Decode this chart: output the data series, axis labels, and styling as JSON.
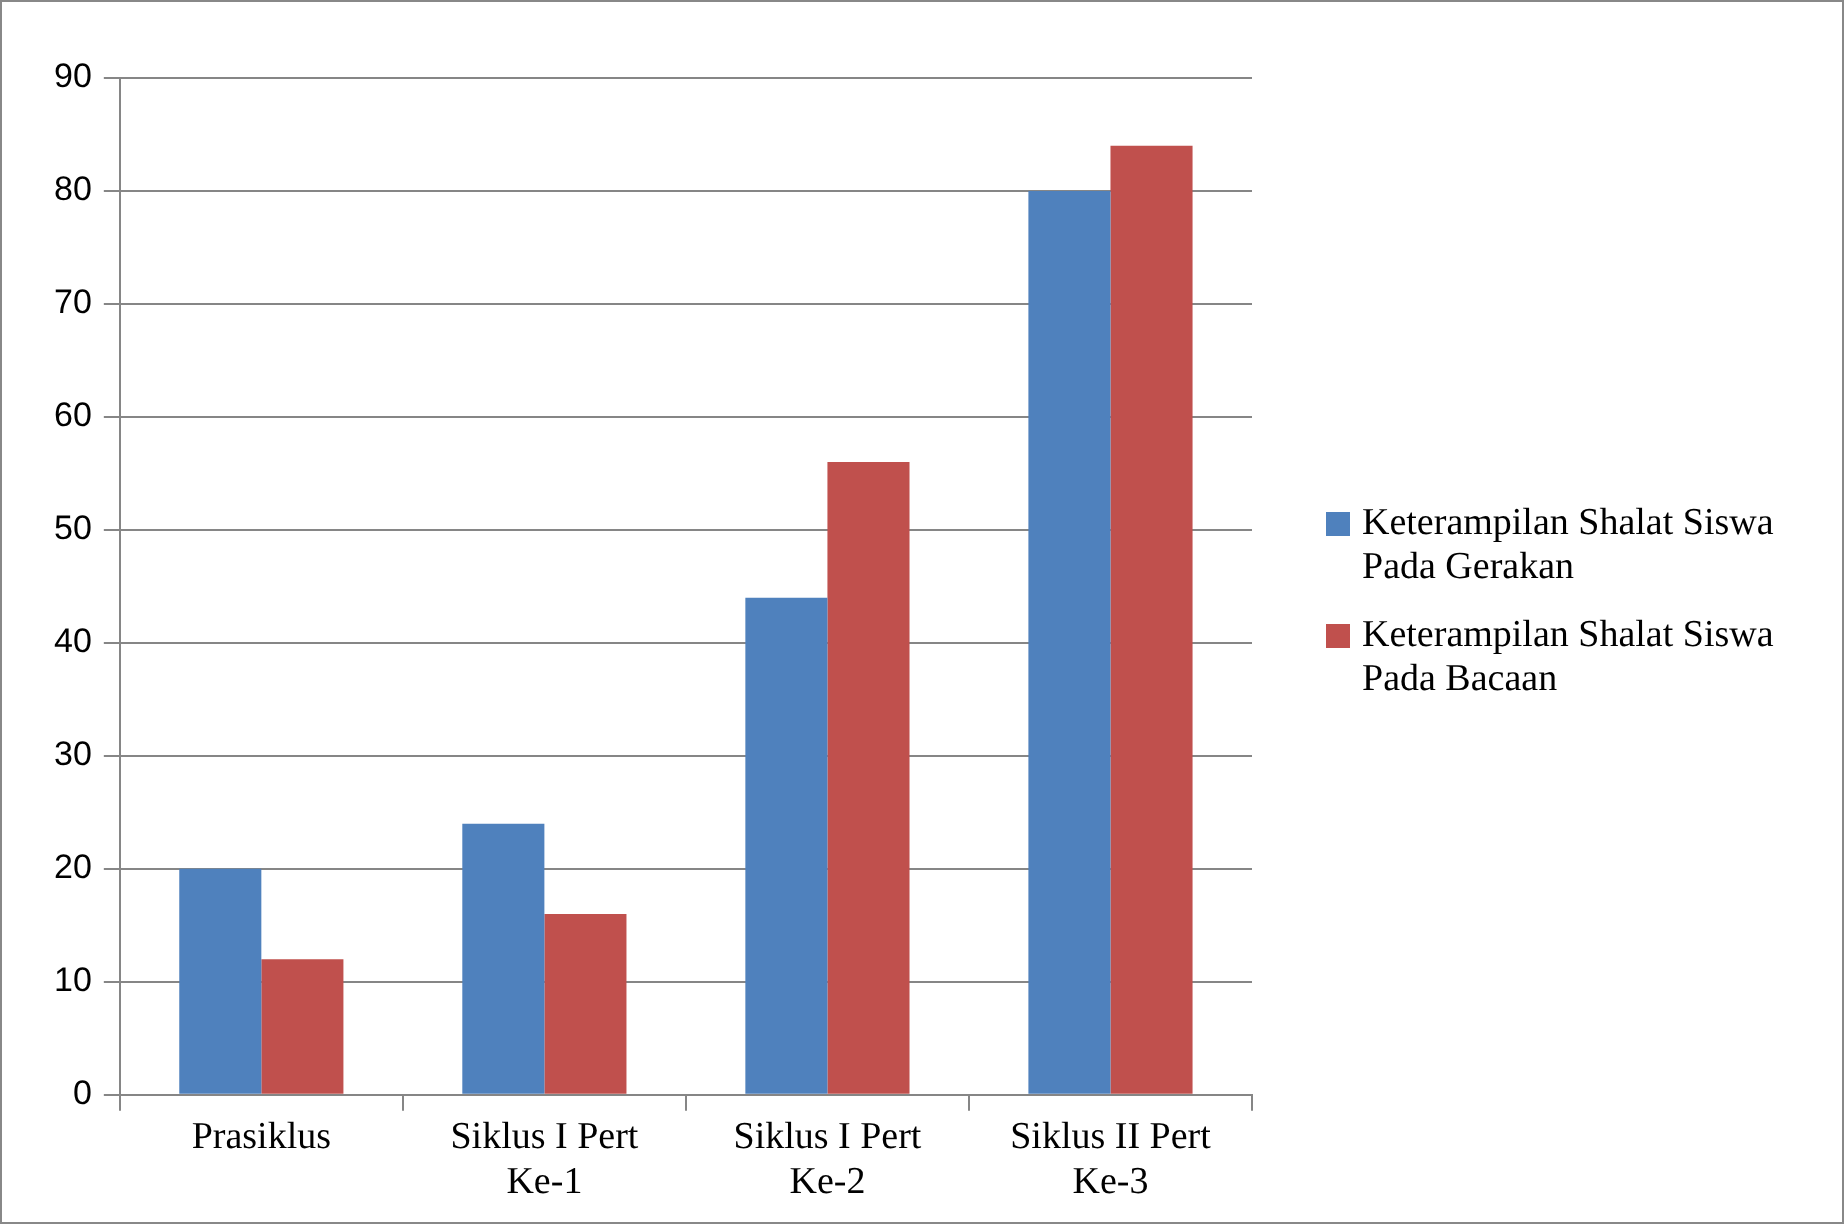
{
  "chart_data": {
    "type": "bar",
    "categories": [
      "Prasiklus",
      "Siklus I Pert Ke-1",
      "Siklus I Pert Ke-2",
      "Siklus II Pert Ke-3"
    ],
    "series": [
      {
        "name": "Keterampilan Shalat Siswa Pada Gerakan",
        "color": "#4f81bd",
        "values": [
          20,
          24,
          44,
          80
        ]
      },
      {
        "name": "Keterampilan Shalat Siswa Pada Bacaan",
        "color": "#c0504d",
        "values": [
          12,
          16,
          56,
          84
        ]
      }
    ],
    "ylim": [
      0,
      90
    ],
    "yticks": [
      0,
      10,
      20,
      30,
      40,
      50,
      60,
      70,
      80,
      90
    ],
    "grid": "y",
    "legend": "right"
  }
}
